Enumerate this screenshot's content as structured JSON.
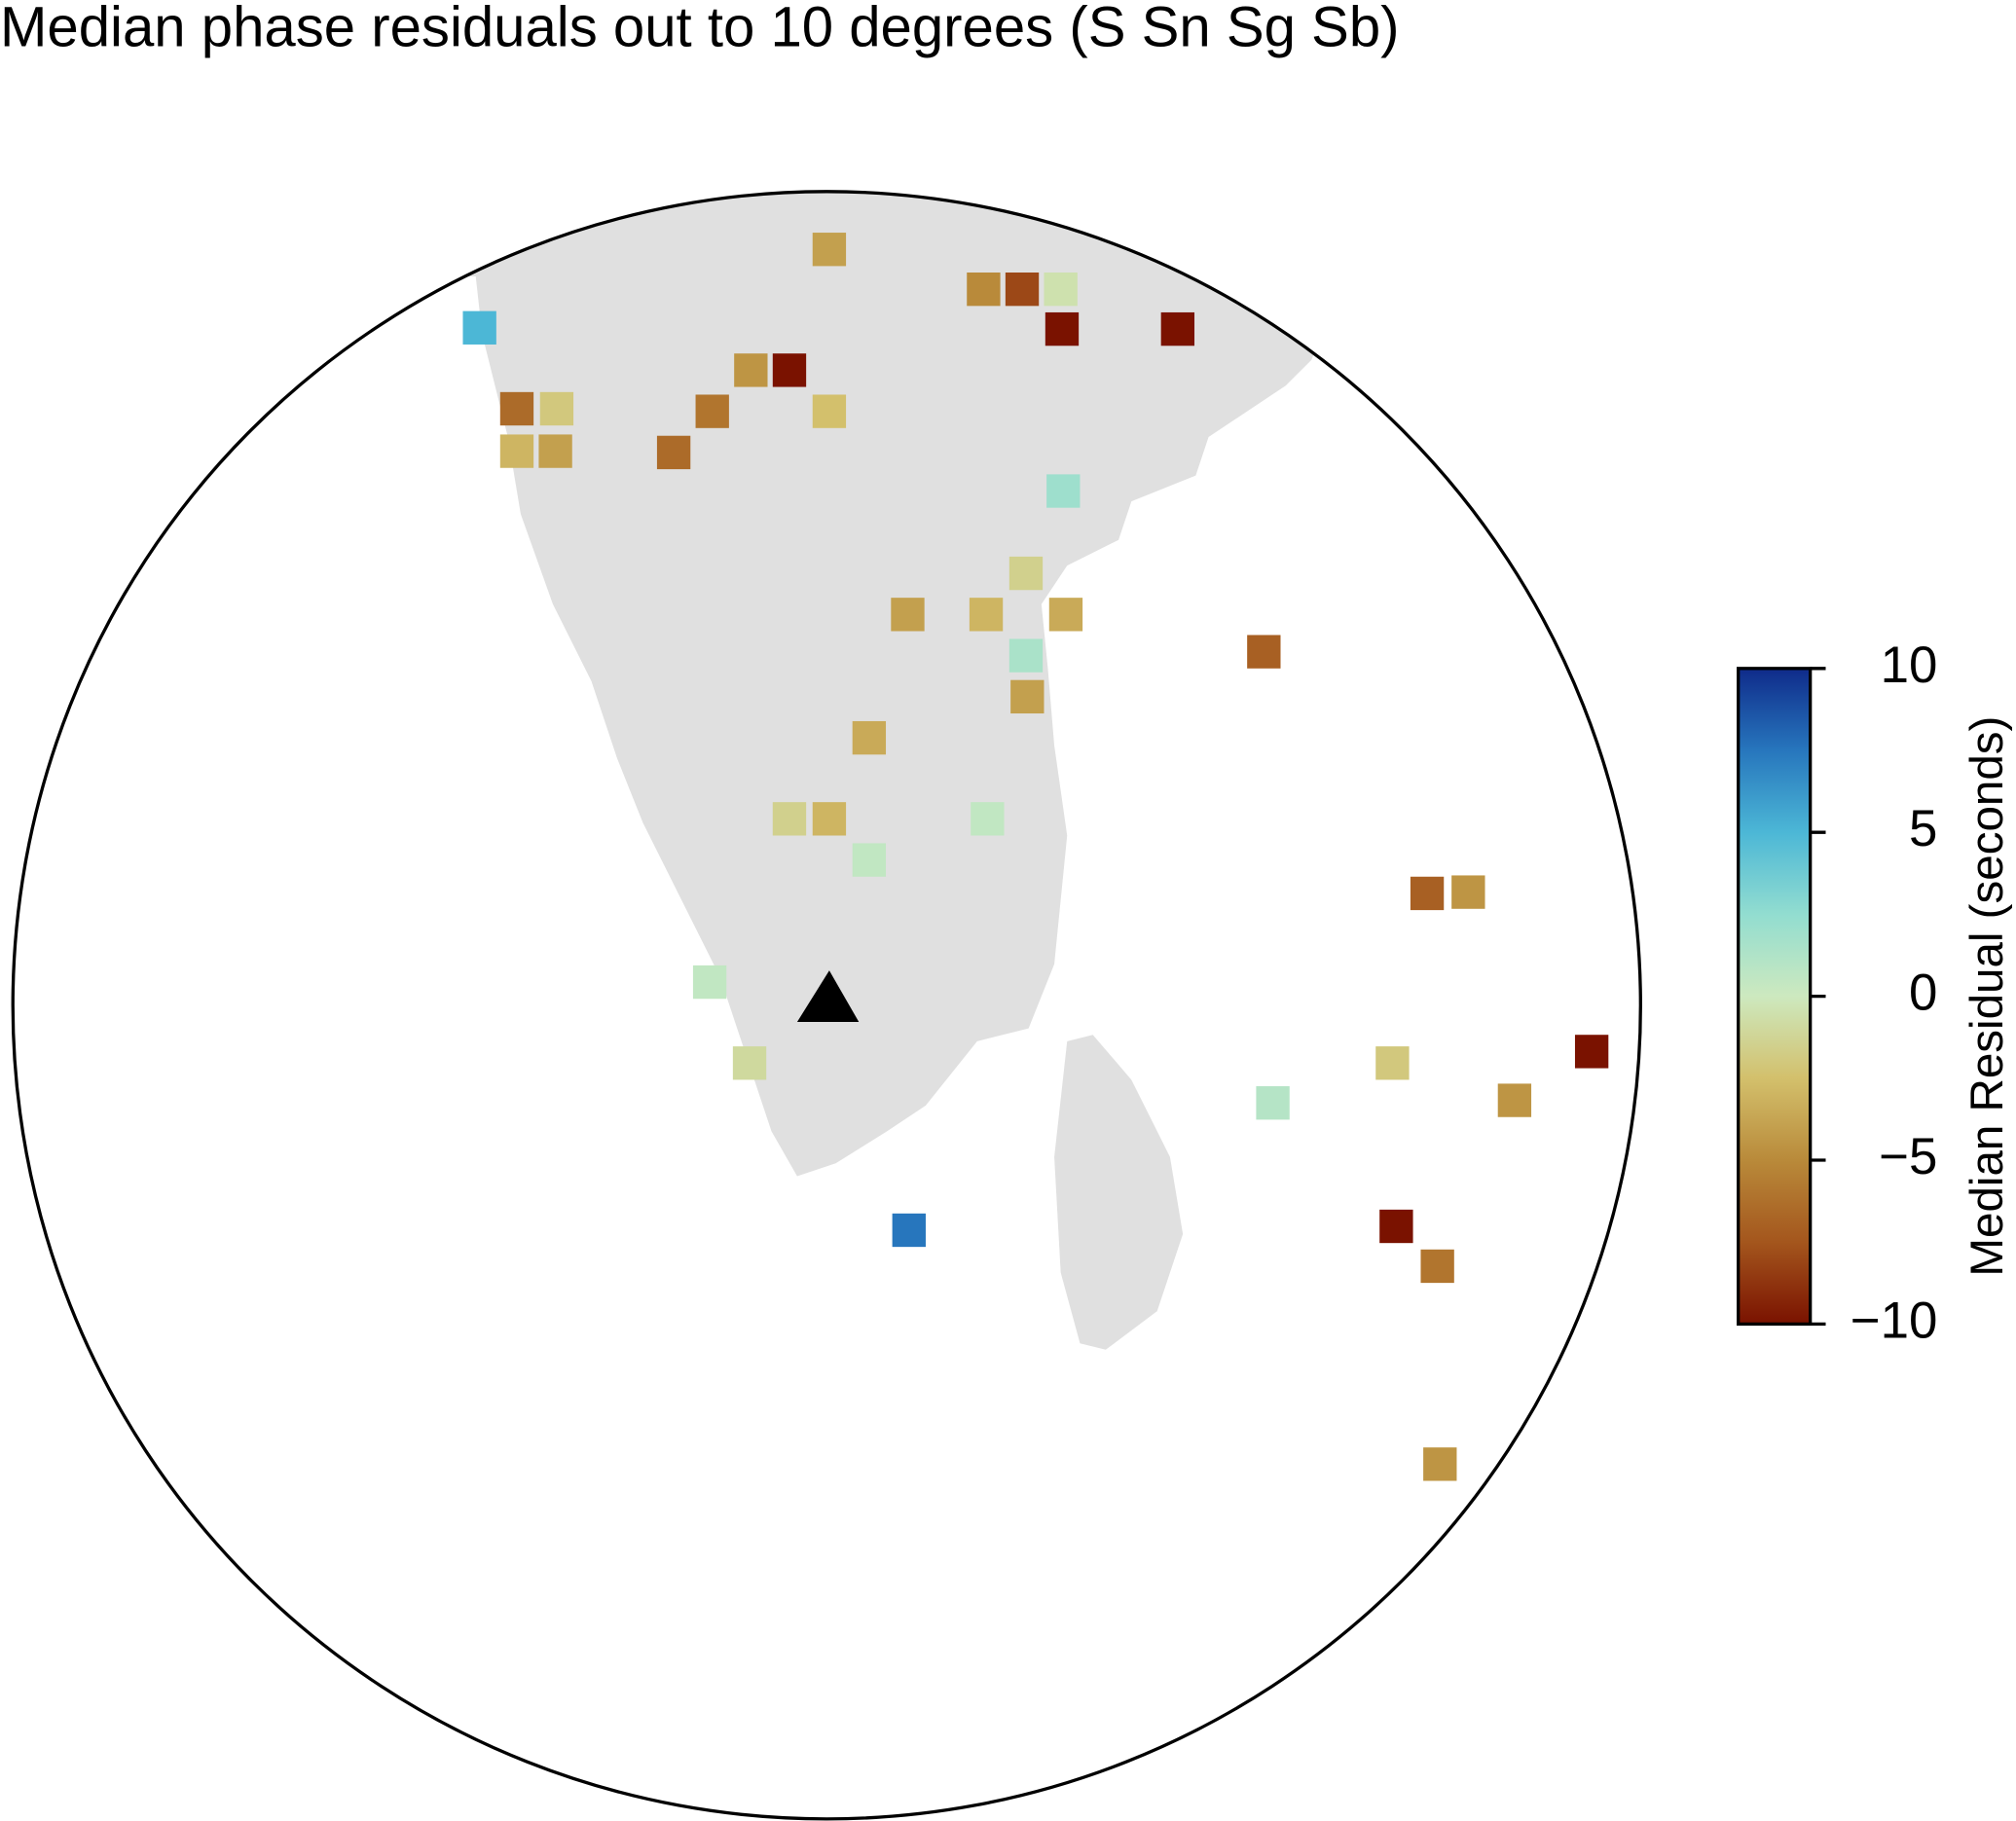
{
  "chart_data": {
    "type": "map",
    "title": "Median phase residuals out to 10 degrees (S Sn Sg Sb)",
    "colorbar_label": "Median Residual (seconds)",
    "clim": [
      -10,
      10
    ],
    "cticks": [
      {
        "value": -10,
        "label": "−10"
      },
      {
        "value": -5,
        "label": "−5"
      },
      0,
      5,
      10
    ],
    "colormap": [
      "#7a1200",
      "#a4561d",
      "#b98a3a",
      "#d3c06c",
      "#cde9bf",
      "#92ddd0",
      "#4cb7d6",
      "#2776bd",
      "#0f2b8a"
    ],
    "values": [
      -4,
      -5,
      -8,
      -0.5,
      -10,
      -10,
      5,
      -4.5,
      -10,
      -6.5,
      -2,
      -6,
      -2.5,
      -3,
      -4,
      -6.5,
      2,
      -1.5,
      -4,
      -3,
      -3.5,
      -7,
      1.5,
      -4,
      -3.5,
      -1.5,
      -3,
      0.5,
      0.5,
      -7,
      -4.5,
      0.5,
      -10,
      -1,
      -2,
      1,
      -4.5,
      7.5,
      -10,
      -6,
      -4.5
    ]
  }
}
